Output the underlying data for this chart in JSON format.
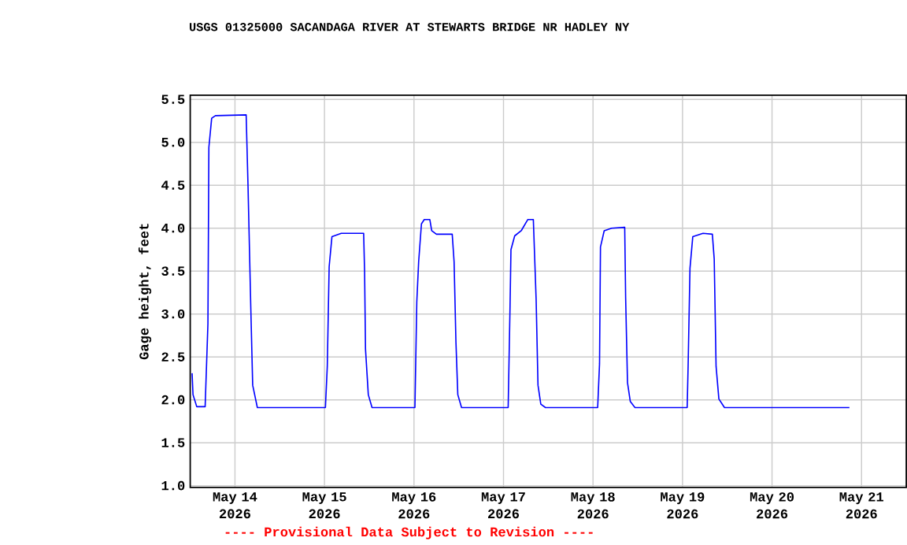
{
  "chart_data": {
    "type": "line",
    "title": "USGS 01325000 SACANDAGA RIVER AT STEWARTS BRIDGE NR HADLEY NY",
    "ylabel": "Gage height, feet",
    "annotations": [
      "---- Provisional Data Subject to Revision ----"
    ],
    "x": [
      "2026-05-13T12:30",
      "2026-05-13T12:45",
      "2026-05-13T13:45",
      "2026-05-13T16:00",
      "2026-05-13T16:45",
      "2026-05-13T17:00",
      "2026-05-13T17:45",
      "2026-05-13T18:45",
      "2026-05-14T03:00",
      "2026-05-14T03:30",
      "2026-05-14T04:15",
      "2026-05-14T04:45",
      "2026-05-14T06:00",
      "2026-05-15T00:15",
      "2026-05-15T00:45",
      "2026-05-15T01:15",
      "2026-05-15T02:00",
      "2026-05-15T04:30",
      "2026-05-15T10:30",
      "2026-05-15T10:45",
      "2026-05-15T11:00",
      "2026-05-15T11:45",
      "2026-05-15T12:45",
      "2026-05-16T00:15",
      "2026-05-16T00:45",
      "2026-05-16T01:15",
      "2026-05-16T02:00",
      "2026-05-16T02:45",
      "2026-05-16T04:15",
      "2026-05-16T04:45",
      "2026-05-16T06:00",
      "2026-05-16T10:15",
      "2026-05-16T10:45",
      "2026-05-16T11:15",
      "2026-05-16T11:45",
      "2026-05-16T12:45",
      "2026-05-17T01:15",
      "2026-05-17T01:45",
      "2026-05-17T02:00",
      "2026-05-17T03:00",
      "2026-05-17T04:45",
      "2026-05-17T06:30",
      "2026-05-17T08:00",
      "2026-05-17T08:45",
      "2026-05-17T09:15",
      "2026-05-17T10:00",
      "2026-05-17T11:15",
      "2026-05-18T01:15",
      "2026-05-18T01:45",
      "2026-05-18T02:00",
      "2026-05-18T03:00",
      "2026-05-18T05:00",
      "2026-05-18T08:30",
      "2026-05-18T08:45",
      "2026-05-18T09:15",
      "2026-05-18T10:00",
      "2026-05-18T11:15",
      "2026-05-19T01:15",
      "2026-05-19T01:30",
      "2026-05-19T02:00",
      "2026-05-19T02:45",
      "2026-05-19T05:30",
      "2026-05-19T08:00",
      "2026-05-19T08:30",
      "2026-05-19T09:00",
      "2026-05-19T09:45",
      "2026-05-19T11:15",
      "2026-05-20T20:45"
    ],
    "values": [
      2.31,
      2.06,
      1.92,
      1.92,
      2.89,
      4.94,
      5.28,
      5.31,
      5.32,
      4.49,
      3.06,
      2.17,
      1.91,
      1.91,
      2.39,
      3.55,
      3.9,
      3.94,
      3.94,
      3.5,
      2.59,
      2.06,
      1.91,
      1.91,
      3.14,
      3.61,
      4.05,
      4.1,
      4.1,
      3.97,
      3.93,
      3.93,
      3.61,
      2.67,
      2.06,
      1.91,
      1.91,
      3.08,
      3.75,
      3.91,
      3.97,
      4.1,
      4.1,
      3.17,
      2.17,
      1.95,
      1.91,
      1.91,
      2.42,
      3.78,
      3.97,
      4.0,
      4.01,
      3.19,
      2.2,
      1.98,
      1.91,
      1.91,
      2.39,
      3.53,
      3.9,
      3.94,
      3.93,
      3.64,
      2.39,
      2.01,
      1.91,
      1.91
    ],
    "color": "#0000ff",
    "xlim": [
      "2026-05-13T12:00",
      "2026-05-21T12:00"
    ],
    "xticks": [
      {
        "value": "2026-05-14",
        "label": "May 14 2026"
      },
      {
        "value": "2026-05-15",
        "label": "May 15 2026"
      },
      {
        "value": "2026-05-16",
        "label": "May 16 2026"
      },
      {
        "value": "2026-05-17",
        "label": "May 17 2026"
      },
      {
        "value": "2026-05-18",
        "label": "May 18 2026"
      },
      {
        "value": "2026-05-19",
        "label": "May 19 2026"
      },
      {
        "value": "2026-05-20",
        "label": "May 20 2026"
      },
      {
        "value": "2026-05-21",
        "label": "May 21 2026"
      }
    ],
    "ylim": [
      0.98,
      5.55
    ],
    "yticks": [
      {
        "value": 1,
        "label": "1.0"
      },
      1.5,
      {
        "value": 2,
        "label": "2.0"
      },
      2.5,
      {
        "value": 3,
        "label": "3.0"
      },
      3.5,
      {
        "value": 4,
        "label": "4.0"
      },
      4.5,
      {
        "value": 5,
        "label": "5.0"
      },
      5.5
    ],
    "grid": true
  }
}
